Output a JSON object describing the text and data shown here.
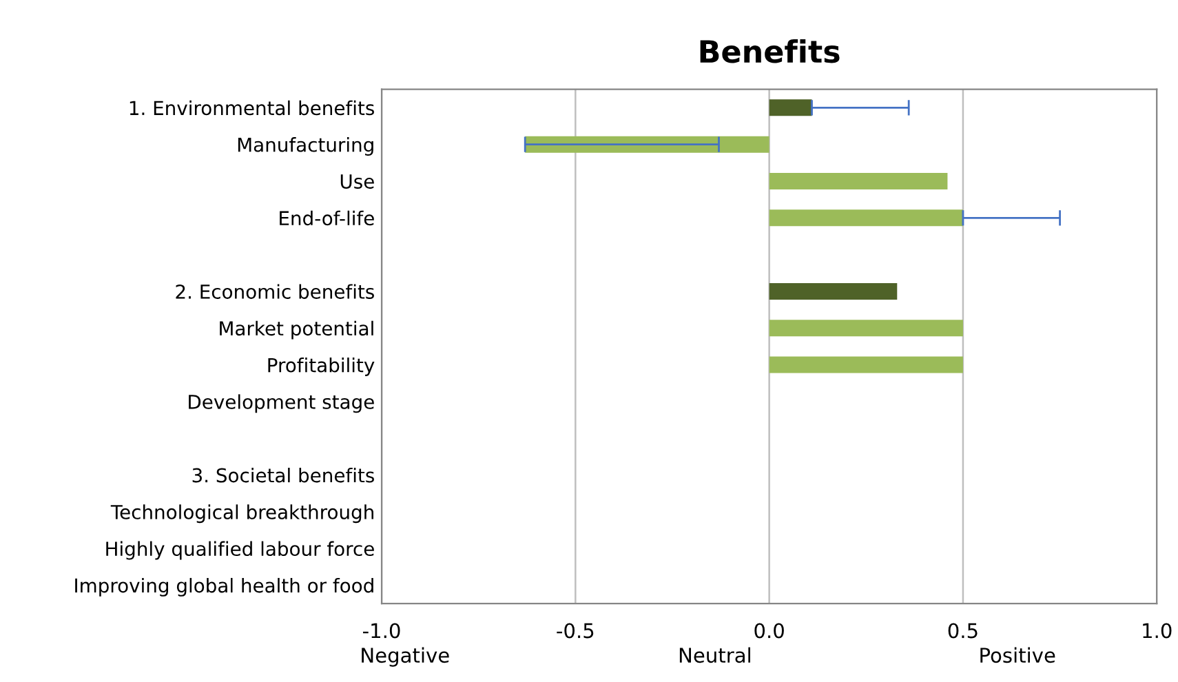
{
  "chart_data": {
    "type": "bar",
    "orientation": "horizontal",
    "title": "Benefits",
    "categories": [
      "1. Environmental benefits",
      "Manufacturing",
      "Use",
      "End-of-life",
      null,
      "2. Economic benefits",
      "Market potential",
      "Profitability",
      "Development stage",
      null,
      "3. Societal benefits",
      "Technological breakthrough",
      "Highly qualified labour force",
      "Improving global health or food"
    ],
    "values": [
      0.11,
      -0.63,
      0.46,
      0.5,
      null,
      0.33,
      0.5,
      0.5,
      null,
      null,
      0,
      null,
      null,
      null
    ],
    "colors": [
      "#4f6228",
      "#9bbb59",
      "#9bbb59",
      "#9bbb59",
      "#9bbb59",
      "#4f6228",
      "#9bbb59",
      "#9bbb59",
      "#9bbb59",
      "#9bbb59",
      "#4f6228",
      "#9bbb59",
      "#9bbb59",
      "#9bbb59"
    ],
    "errors": [
      [
        0.11,
        0.36
      ],
      [
        -0.63,
        -0.13
      ],
      null,
      [
        0.5,
        0.75
      ],
      null,
      null,
      null,
      null,
      null,
      null,
      null,
      null,
      null,
      null
    ],
    "xlim": [
      -1.0,
      1.0
    ],
    "xticks": [
      {
        "value": -1.0,
        "label": "-1.0"
      },
      {
        "value": -0.5,
        "label": "-0.5"
      },
      {
        "value": 0.0,
        "label": "0.0"
      },
      {
        "value": 0.5,
        "label": "0.5"
      },
      {
        "value": 1.0,
        "label": "1.0"
      }
    ],
    "grid": "x",
    "annotations": [
      "Negative",
      "Neutral",
      "Positive"
    ]
  }
}
